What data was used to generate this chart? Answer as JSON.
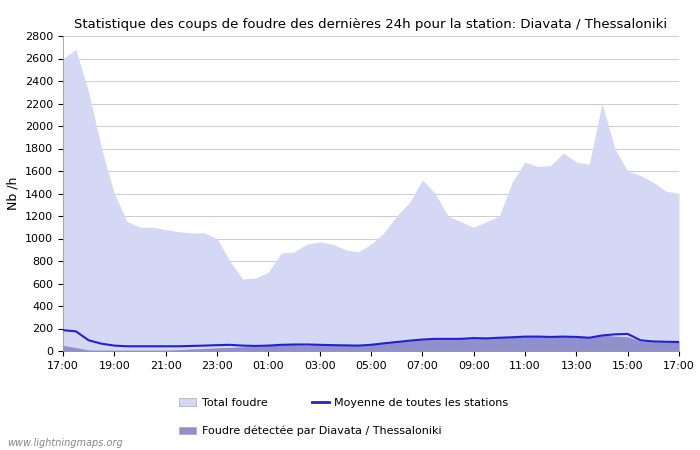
{
  "title": "Statistique des coups de foudre des dernières 24h pour la station: Diavata / Thessaloniki",
  "ylabel": "Nb /h",
  "ylim": [
    0,
    2800
  ],
  "yticks": [
    0,
    200,
    400,
    600,
    800,
    1000,
    1200,
    1400,
    1600,
    1800,
    2000,
    2200,
    2400,
    2600,
    2800
  ],
  "xtick_labels": [
    "17:00",
    "19:00",
    "21:00",
    "23:00",
    "01:00",
    "03:00",
    "05:00",
    "07:00",
    "09:00",
    "11:00",
    "13:00",
    "15:00",
    "17:00"
  ],
  "xtick_positions": [
    0,
    4,
    8,
    12,
    16,
    20,
    24,
    28,
    32,
    36,
    40,
    44,
    48
  ],
  "background_color": "#ffffff",
  "grid_color": "#cccccc",
  "total_foudre_color": "#d4d8f5",
  "detected_color": "#9090cc",
  "moyenne_color": "#2222cc",
  "watermark": "www.lightningmaps.org",
  "total_foudre": [
    2600,
    2680,
    2300,
    1800,
    1400,
    1150,
    1100,
    1100,
    1080,
    1060,
    1050,
    1050,
    1000,
    800,
    640,
    650,
    700,
    870,
    880,
    950,
    970,
    950,
    900,
    880,
    950,
    1050,
    1200,
    1320,
    1520,
    1400,
    1200,
    1150,
    1100,
    1150,
    1200,
    1500,
    1680,
    1640,
    1650,
    1760,
    1680,
    1660,
    2200,
    1800,
    1600,
    1560,
    1500,
    1420,
    1400
  ],
  "detected": [
    50,
    30,
    10,
    8,
    8,
    8,
    8,
    8,
    8,
    12,
    18,
    22,
    28,
    32,
    38,
    42,
    52,
    62,
    58,
    52,
    57,
    57,
    52,
    52,
    57,
    72,
    82,
    92,
    102,
    112,
    112,
    117,
    122,
    117,
    122,
    127,
    132,
    132,
    127,
    132,
    127,
    122,
    142,
    132,
    127,
    87,
    82,
    82,
    82
  ],
  "moyenne": [
    185,
    175,
    95,
    65,
    48,
    42,
    42,
    42,
    42,
    42,
    45,
    48,
    52,
    55,
    48,
    45,
    48,
    55,
    58,
    58,
    55,
    52,
    50,
    48,
    55,
    68,
    80,
    92,
    102,
    108,
    108,
    108,
    115,
    112,
    118,
    122,
    128,
    128,
    125,
    128,
    125,
    118,
    138,
    148,
    152,
    95,
    85,
    82,
    80
  ]
}
